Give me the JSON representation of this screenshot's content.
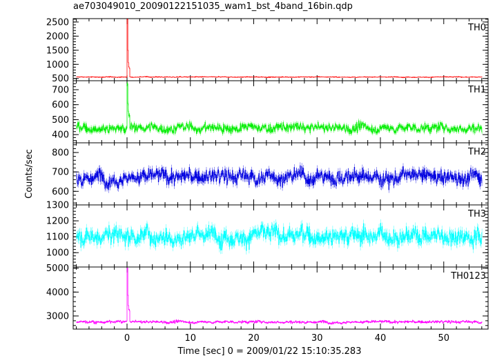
{
  "chart_data": {
    "type": "line",
    "title": "ae703049010_20090122151035_wam1_bst_4band_16bin.qdp",
    "xlabel": "Time [sec] 0 = 2009/01/22 15:10:35.283",
    "ylabel": "Counts/sec",
    "xlim": [
      -8.5,
      57
    ],
    "xticks": [
      0,
      10,
      20,
      30,
      40,
      50
    ],
    "grid": false,
    "panels": [
      {
        "name": "TH0",
        "color": "#ff0000",
        "ylim": [
          420,
          2620
        ],
        "yticks": [
          500,
          1000,
          1500,
          2000,
          2500
        ],
        "baseline": 550,
        "noise": 18,
        "spike_peak": 2600,
        "spike_tail": 850
      },
      {
        "name": "TH1",
        "color": "#00ee00",
        "ylim": [
          345,
          760
        ],
        "yticks": [
          400,
          500,
          600,
          700
        ],
        "baseline": 445,
        "noise": 38,
        "spike_peak": 740,
        "spike_tail": 520
      },
      {
        "name": "TH2",
        "color": "#0000e0",
        "ylim": [
          530,
          850
        ],
        "yticks": [
          600,
          700,
          800
        ],
        "baseline": 675,
        "noise": 48,
        "spike_peak": null,
        "spike_tail": null
      },
      {
        "name": "TH3",
        "color": "#00ffff",
        "ylim": [
          910,
          1300
        ],
        "yticks": [
          1000,
          1100,
          1200,
          1300
        ],
        "baseline": 1110,
        "noise": 70,
        "spike_peak": null,
        "spike_tail": null
      },
      {
        "name": "TH0123",
        "color": "#ff00ff",
        "ylim": [
          2450,
          5050
        ],
        "yticks": [
          3000,
          4000,
          5000
        ],
        "baseline": 2750,
        "noise": 70,
        "spike_peak": 5000,
        "spike_tail": 3200
      }
    ]
  }
}
